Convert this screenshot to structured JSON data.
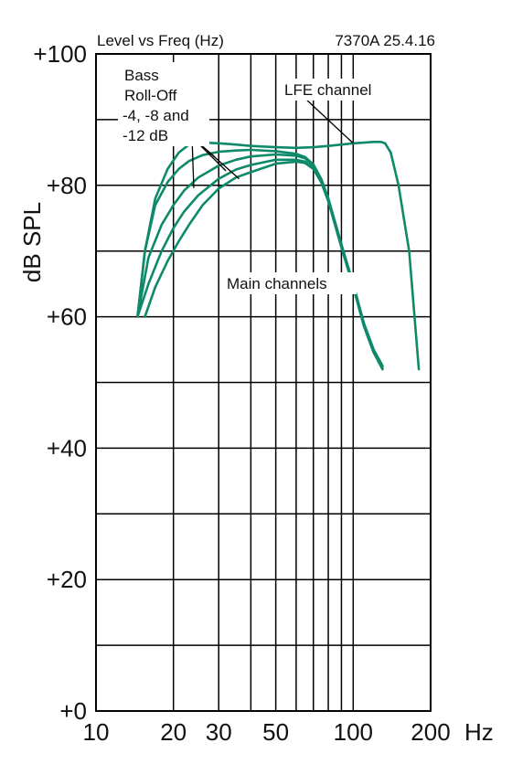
{
  "chart_data": {
    "type": "line",
    "header_left": "Level vs Freq (Hz)",
    "header_right": "7370A 25.4.16",
    "ylabel": "dB SPL",
    "xlabel": "Hz",
    "x_scale": "log",
    "xlim": [
      10,
      200
    ],
    "ylim": [
      0,
      100
    ],
    "x_gridlines": [
      20,
      30,
      40,
      50,
      60,
      70,
      80,
      90,
      100,
      200
    ],
    "y_gridlines": [
      10,
      20,
      30,
      40,
      50,
      60,
      70,
      80,
      90
    ],
    "x_ticks": [
      {
        "value": 10,
        "label": "10"
      },
      {
        "value": 20,
        "label": "20"
      },
      {
        "value": 30,
        "label": "30"
      },
      {
        "value": 50,
        "label": "50"
      },
      {
        "value": 100,
        "label": "100"
      },
      {
        "value": 200,
        "label": "200"
      }
    ],
    "y_ticks": [
      {
        "value": 100,
        "label": "+100"
      },
      {
        "value": 80,
        "label": "+80"
      },
      {
        "value": 60,
        "label": "+60"
      },
      {
        "value": 40,
        "label": "+40"
      },
      {
        "value": 20,
        "label": "+20"
      },
      {
        "value": 0,
        "label": "+0"
      }
    ],
    "line_color": "#0e8a6a",
    "series": [
      {
        "x": [
          14.5,
          15.5,
          17,
          19,
          21,
          23,
          26,
          30,
          35,
          40,
          50,
          60,
          70,
          80,
          90,
          100,
          110,
          120,
          128,
          133,
          140,
          150,
          165,
          180
        ],
        "y": [
          60,
          70,
          78,
          82.5,
          85,
          86.2,
          86.5,
          86.4,
          86.2,
          86,
          85.8,
          85.7,
          85.8,
          86,
          86.2,
          86.4,
          86.5,
          86.6,
          86.6,
          86.4,
          85,
          80,
          70,
          52
        ]
      },
      {
        "x": [
          14.5,
          15.5,
          17,
          19,
          21,
          23,
          26,
          30,
          35,
          40,
          50,
          60,
          65,
          70,
          75,
          80,
          90,
          100,
          110,
          120,
          130
        ],
        "y": [
          60,
          70,
          77,
          80.5,
          82.5,
          83.7,
          84.6,
          85.1,
          85.3,
          85.4,
          85.2,
          84.8,
          84.3,
          83.2,
          81,
          78,
          71,
          65,
          59,
          55,
          52.5
        ]
      },
      {
        "x": [
          14.5,
          16,
          18,
          20,
          22,
          25,
          30,
          35,
          40,
          50,
          60,
          65,
          70,
          75,
          80,
          90,
          100,
          110,
          120,
          130
        ],
        "y": [
          60,
          69,
          74,
          77,
          79.2,
          81.2,
          83,
          83.9,
          84.4,
          84.7,
          84.5,
          84.1,
          83,
          81,
          78,
          71,
          65,
          59,
          55,
          52.5
        ]
      },
      {
        "x": [
          14.5,
          16,
          18,
          20,
          22,
          25,
          30,
          35,
          40,
          50,
          60,
          65,
          70,
          75,
          80,
          90,
          100,
          110,
          120,
          130
        ],
        "y": [
          60,
          65,
          70,
          73.5,
          76,
          78.5,
          81,
          82.4,
          83.1,
          83.9,
          83.9,
          83.6,
          82.6,
          80.6,
          77.6,
          70.6,
          64.6,
          58.6,
          54.6,
          52
        ]
      },
      {
        "x": [
          15.5,
          17,
          19,
          21,
          23,
          26,
          30,
          35,
          40,
          50,
          60,
          65,
          70,
          75,
          80,
          90,
          100,
          110,
          120,
          130
        ],
        "y": [
          60,
          64.5,
          68.5,
          71.5,
          74,
          77,
          79.5,
          81.2,
          82,
          83.3,
          83.6,
          83.4,
          82.5,
          80.5,
          77.6,
          70.6,
          64.6,
          58.6,
          54.6,
          52.2
        ]
      }
    ],
    "annotations": {
      "bass_rolloff": [
        "Bass",
        "Roll-Off",
        "-4, -8 and",
        "-12 dB"
      ],
      "lfe": "LFE channel",
      "main": "Main channels"
    }
  }
}
